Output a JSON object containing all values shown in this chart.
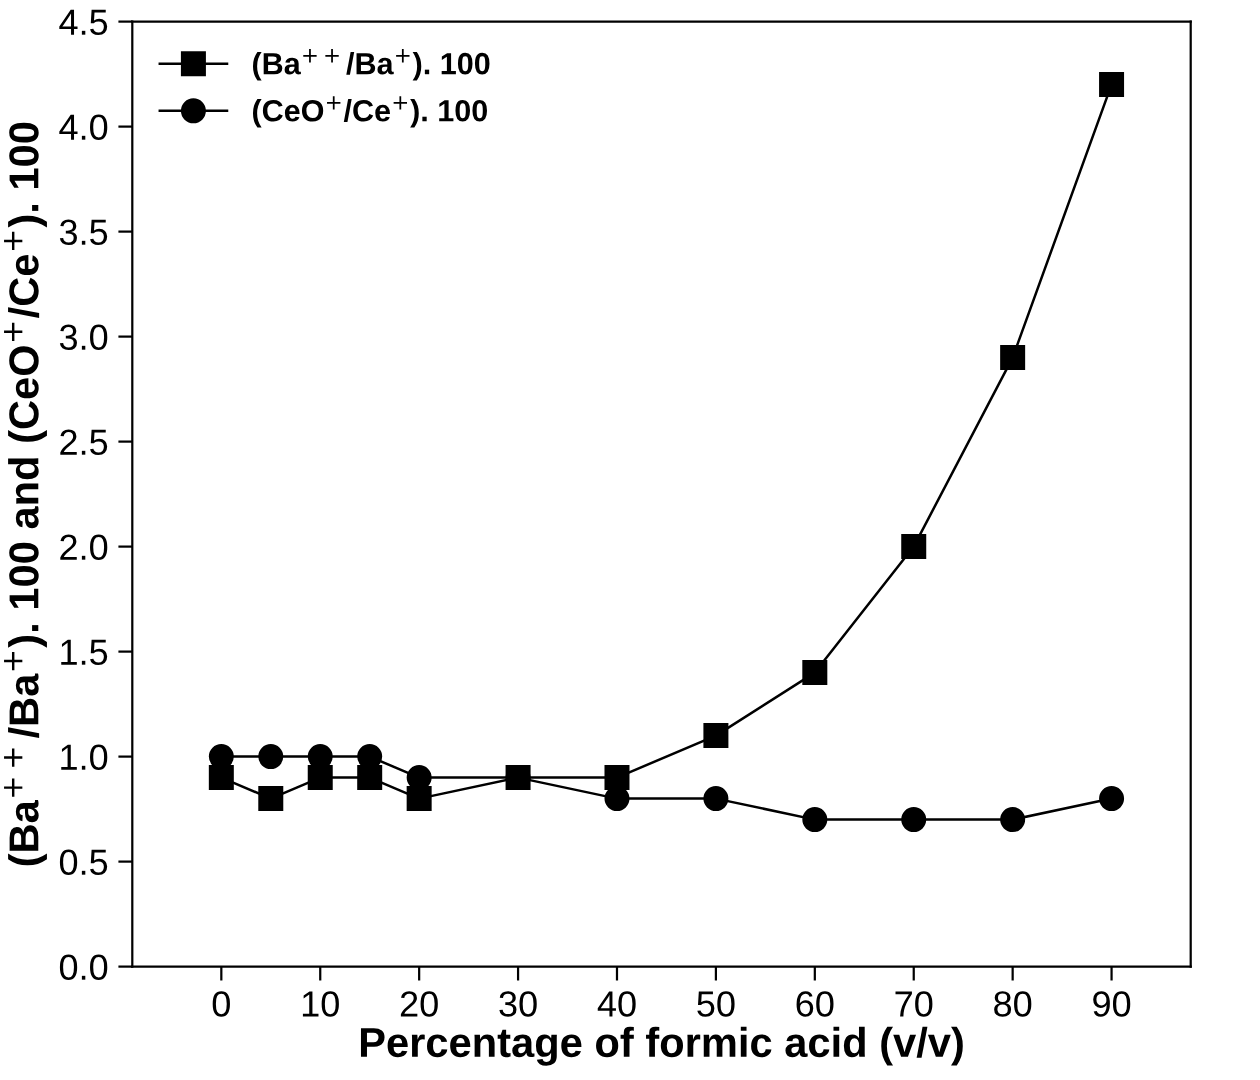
{
  "chart_data": {
    "type": "line",
    "xlabel": "Percentage of formic acid (v/v)",
    "ylabel": "(Ba$^{++}$/Ba$^{+}$). 100 and (CeO$^{+}$/Ce$^{+}$). 100",
    "x": [
      0,
      5,
      10,
      15,
      20,
      30,
      40,
      50,
      60,
      70,
      80,
      90
    ],
    "series": [
      {
        "name": "(Ba$^{++}$/Ba$^{+}$). 100",
        "color": "#000000",
        "marker": "square",
        "values": [
          0.9,
          0.8,
          0.9,
          0.9,
          0.8,
          0.9,
          0.9,
          1.1,
          1.4,
          2.0,
          2.9,
          4.2
        ]
      },
      {
        "name": "(CeO$^{+}$/Ce$^{+}$). 100",
        "color": "#000000",
        "marker": "circle",
        "values": [
          1.0,
          1.0,
          1.0,
          1.0,
          0.9,
          0.9,
          0.8,
          0.8,
          0.7,
          0.7,
          0.7,
          0.8
        ]
      }
    ],
    "xlim": [
      -9,
      98
    ],
    "ylim": [
      0,
      4.5
    ],
    "xticks": [
      0,
      10,
      20,
      30,
      40,
      50,
      60,
      70,
      80,
      90
    ],
    "yticks": [
      {
        "value": 0,
        "label": "0.0"
      },
      {
        "value": 0.5,
        "label": "0.5"
      },
      {
        "value": 1.0,
        "label": "1.0"
      },
      {
        "value": 1.5,
        "label": "1.5"
      },
      {
        "value": 2.0,
        "label": "2.0"
      },
      {
        "value": 2.5,
        "label": "2.5"
      },
      {
        "value": 3.0,
        "label": "3.0"
      },
      {
        "value": 3.5,
        "label": "3.5"
      },
      {
        "value": 4.0,
        "label": "4.0"
      },
      {
        "value": 4.5,
        "label": "4.5"
      }
    ],
    "legend": "top left",
    "grid": false,
    "line_style": "solid"
  }
}
